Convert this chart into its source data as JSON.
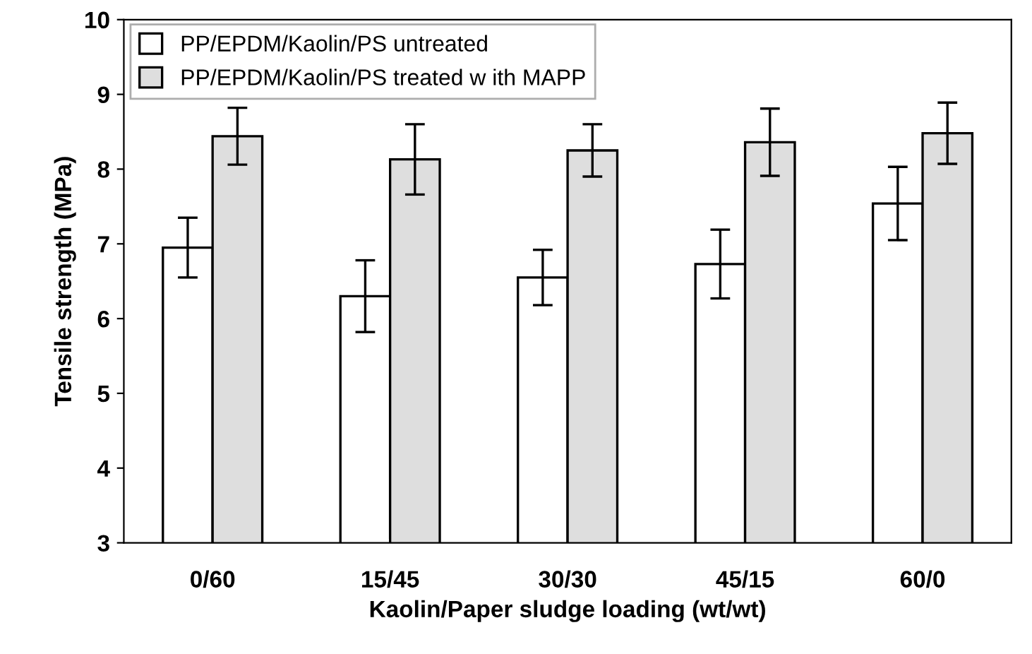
{
  "chart_data": {
    "type": "bar",
    "xlabel": "Kaolin/Paper sludge loading (wt/wt)",
    "ylabel": "Tensile strength (MPa)",
    "categories": [
      "0/60",
      "15/45",
      "30/30",
      "45/15",
      "60/0"
    ],
    "series": [
      {
        "name": "PP/EPDM/Kaolin/PS untreated",
        "color": "#ffffff",
        "values": [
          6.95,
          6.3,
          6.55,
          6.73,
          7.54
        ],
        "errors": [
          0.4,
          0.48,
          0.37,
          0.46,
          0.49
        ]
      },
      {
        "name": "PP/EPDM/Kaolin/PS treated w ith MAPP",
        "color": "#dedede",
        "values": [
          8.44,
          8.13,
          8.25,
          8.36,
          8.48
        ],
        "errors": [
          0.38,
          0.47,
          0.35,
          0.45,
          0.41
        ]
      }
    ],
    "ylim": [
      3,
      10
    ],
    "yticks": [
      3,
      4,
      5,
      6,
      7,
      8,
      9,
      10
    ],
    "grid": false,
    "legend": "top left"
  }
}
